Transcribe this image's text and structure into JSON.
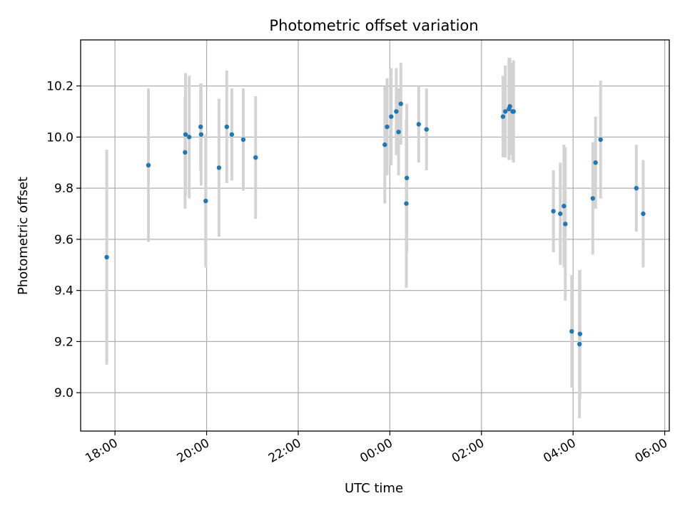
{
  "chart_data": {
    "type": "scatter",
    "title": "Photometric offset variation",
    "xlabel": "UTC time",
    "ylabel": "Photometric offset",
    "x_unit": "hours since 00:00 UTC",
    "xlim": [
      -6.75,
      6.1
    ],
    "ylim": [
      8.85,
      10.38
    ],
    "x_ticks": [
      {
        "value": -6,
        "label": "18:00"
      },
      {
        "value": -4,
        "label": "20:00"
      },
      {
        "value": -2,
        "label": "22:00"
      },
      {
        "value": 0,
        "label": "00:00"
      },
      {
        "value": 2,
        "label": "02:00"
      },
      {
        "value": 4,
        "label": "04:00"
      },
      {
        "value": 6,
        "label": "06:00"
      }
    ],
    "y_ticks": [
      {
        "value": 9.0,
        "label": "9.0"
      },
      {
        "value": 9.2,
        "label": "9.2"
      },
      {
        "value": 9.4,
        "label": "9.4"
      },
      {
        "value": 9.6,
        "label": "9.6"
      },
      {
        "value": 9.8,
        "label": "9.8"
      },
      {
        "value": 10.0,
        "label": "10.0"
      },
      {
        "value": 10.2,
        "label": "10.2"
      }
    ],
    "grid": true,
    "marker_color": "#1f77b4",
    "errorbar_color": "#d3d3d3",
    "points": [
      {
        "x": -6.18,
        "y": 9.53,
        "err": 0.42
      },
      {
        "x": -5.27,
        "y": 9.89,
        "err": 0.3
      },
      {
        "x": -4.47,
        "y": 9.94,
        "err": 0.22
      },
      {
        "x": -4.46,
        "y": 10.01,
        "err": 0.24
      },
      {
        "x": -4.38,
        "y": 10.0,
        "err": 0.24
      },
      {
        "x": -4.13,
        "y": 10.04,
        "err": 0.17
      },
      {
        "x": -4.12,
        "y": 10.01,
        "err": 0.2
      },
      {
        "x": -4.02,
        "y": 9.75,
        "err": 0.26
      },
      {
        "x": -3.73,
        "y": 9.88,
        "err": 0.27
      },
      {
        "x": -3.56,
        "y": 10.04,
        "err": 0.22
      },
      {
        "x": -3.45,
        "y": 10.01,
        "err": 0.18
      },
      {
        "x": -3.2,
        "y": 9.99,
        "err": 0.2
      },
      {
        "x": -2.93,
        "y": 9.92,
        "err": 0.24
      },
      {
        "x": -0.11,
        "y": 9.97,
        "err": 0.23
      },
      {
        "x": -0.06,
        "y": 10.04,
        "err": 0.19
      },
      {
        "x": 0.03,
        "y": 10.08,
        "err": 0.19
      },
      {
        "x": 0.14,
        "y": 10.1,
        "err": 0.17
      },
      {
        "x": 0.19,
        "y": 10.02,
        "err": 0.17
      },
      {
        "x": 0.24,
        "y": 10.13,
        "err": 0.16
      },
      {
        "x": 0.37,
        "y": 9.84,
        "err": 0.29
      },
      {
        "x": 0.36,
        "y": 9.74,
        "err": 0.33
      },
      {
        "x": 0.63,
        "y": 10.05,
        "err": 0.15
      },
      {
        "x": 0.8,
        "y": 10.03,
        "err": 0.16
      },
      {
        "x": 2.47,
        "y": 10.08,
        "err": 0.16
      },
      {
        "x": 2.52,
        "y": 10.1,
        "err": 0.18
      },
      {
        "x": 2.6,
        "y": 10.11,
        "err": 0.2
      },
      {
        "x": 2.62,
        "y": 10.12,
        "err": 0.19
      },
      {
        "x": 2.68,
        "y": 10.1,
        "err": 0.19
      },
      {
        "x": 2.7,
        "y": 10.1,
        "err": 0.2
      },
      {
        "x": 3.57,
        "y": 9.71,
        "err": 0.16
      },
      {
        "x": 3.72,
        "y": 9.7,
        "err": 0.2
      },
      {
        "x": 3.8,
        "y": 9.73,
        "err": 0.24
      },
      {
        "x": 3.83,
        "y": 9.66,
        "err": 0.3
      },
      {
        "x": 3.97,
        "y": 9.24,
        "err": 0.22
      },
      {
        "x": 4.14,
        "y": 9.19,
        "err": 0.29
      },
      {
        "x": 4.15,
        "y": 9.23,
        "err": 0.25
      },
      {
        "x": 4.43,
        "y": 9.76,
        "err": 0.22
      },
      {
        "x": 4.49,
        "y": 9.9,
        "err": 0.18
      },
      {
        "x": 4.6,
        "y": 9.99,
        "err": 0.23
      },
      {
        "x": 5.38,
        "y": 9.8,
        "err": 0.17
      },
      {
        "x": 5.53,
        "y": 9.7,
        "err": 0.21
      }
    ]
  }
}
